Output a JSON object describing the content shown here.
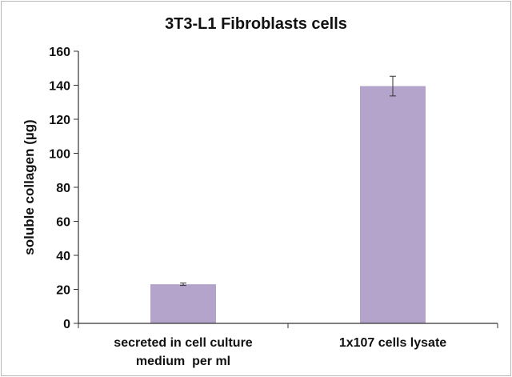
{
  "chart_data": {
    "type": "bar",
    "title": "3T3-L1 Fibroblasts cells",
    "xlabel": "",
    "ylabel": "soluble collagen (µg)",
    "ylim": [
      0,
      160
    ],
    "yticks": [
      0,
      20,
      40,
      60,
      80,
      100,
      120,
      140,
      160
    ],
    "categories": [
      [
        "secreted in cell culture",
        "medium  per ml"
      ],
      [
        "1x107 cells lysate"
      ]
    ],
    "values": [
      23,
      139.5
    ],
    "errors": [
      0.7,
      5.8
    ],
    "grid": false,
    "legend": "none",
    "bar_color": "#b4a4cc",
    "axis_color": "#333333",
    "errorbar_color": "#333333"
  }
}
